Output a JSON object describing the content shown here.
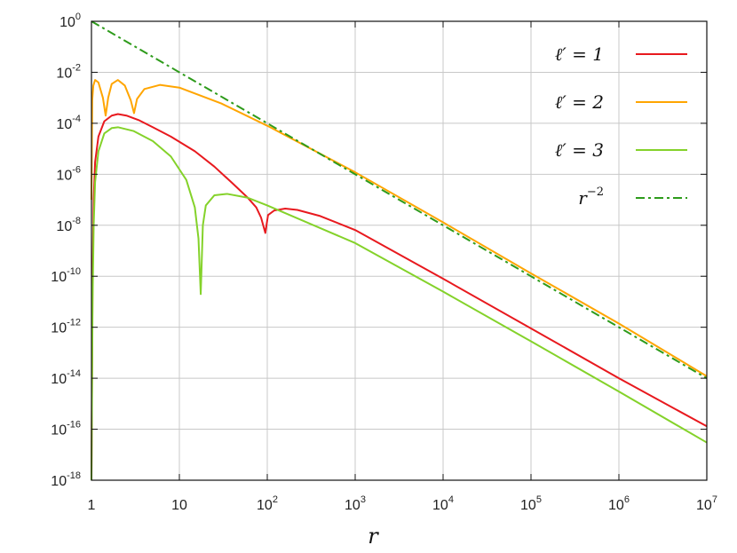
{
  "chart_data": {
    "type": "line",
    "xscale": "log",
    "yscale": "log",
    "xlim": [
      1,
      10000000
    ],
    "ylim": [
      1e-18,
      1
    ],
    "xlabel": "r",
    "ylabel": "",
    "grid": true,
    "legend_position": "top-right",
    "x_ticks": [
      {
        "value": 1,
        "base": "1",
        "exp": ""
      },
      {
        "value": 10,
        "base": "10",
        "exp": ""
      },
      {
        "value": 100,
        "base": "10",
        "exp": "2"
      },
      {
        "value": 1000,
        "base": "10",
        "exp": "3"
      },
      {
        "value": 10000,
        "base": "10",
        "exp": "4"
      },
      {
        "value": 100000,
        "base": "10",
        "exp": "5"
      },
      {
        "value": 1000000,
        "base": "10",
        "exp": "6"
      },
      {
        "value": 10000000,
        "base": "10",
        "exp": "7"
      }
    ],
    "y_ticks": [
      {
        "value": 1,
        "base": "10",
        "exp": "0"
      },
      {
        "value": 0.01,
        "base": "10",
        "exp": "-2"
      },
      {
        "value": 0.0001,
        "base": "10",
        "exp": "-4"
      },
      {
        "value": 1e-06,
        "base": "10",
        "exp": "-6"
      },
      {
        "value": 1e-08,
        "base": "10",
        "exp": "-8"
      },
      {
        "value": 1e-10,
        "base": "10",
        "exp": "-10"
      },
      {
        "value": 1e-12,
        "base": "10",
        "exp": "-12"
      },
      {
        "value": 1e-14,
        "base": "10",
        "exp": "-14"
      },
      {
        "value": 1e-16,
        "base": "10",
        "exp": "-16"
      },
      {
        "value": 1e-18,
        "base": "10",
        "exp": "-18"
      }
    ],
    "series": [
      {
        "name": "ℓ′ = 1",
        "name_base": "ℓ′ = 1",
        "name_exp": "",
        "color": "#e8191e",
        "dash": "",
        "points": [
          [
            1,
            1e-18
          ],
          [
            1.03,
            1e-10
          ],
          [
            1.06,
            1e-07
          ],
          [
            1.1,
            3e-06
          ],
          [
            1.2,
            3e-05
          ],
          [
            1.4,
            0.00012
          ],
          [
            1.7,
            0.0002
          ],
          [
            2.0,
            0.00023
          ],
          [
            2.5,
            0.0002
          ],
          [
            3.5,
            0.00013
          ],
          [
            5,
            7e-05
          ],
          [
            8,
            3e-05
          ],
          [
            15,
            8e-06
          ],
          [
            25,
            2e-06
          ],
          [
            40,
            4.5e-07
          ],
          [
            60,
            1.2e-07
          ],
          [
            75,
            5e-08
          ],
          [
            85,
            2e-08
          ],
          [
            95,
            5e-09
          ],
          [
            102,
            2.5e-08
          ],
          [
            120,
            3.8e-08
          ],
          [
            160,
            4.5e-08
          ],
          [
            220,
            4e-08
          ],
          [
            400,
            2.3e-08
          ],
          [
            1000,
            6.5e-09
          ],
          [
            10000,
            8e-11
          ],
          [
            100000,
            9e-13
          ],
          [
            1000000,
            1e-14
          ],
          [
            10000000,
            1.3e-16
          ]
        ]
      },
      {
        "name": "ℓ′ = 2",
        "name_base": "ℓ′ = 2",
        "name_exp": "",
        "color": "#ffa500",
        "dash": "",
        "points": [
          [
            1,
            1e-07
          ],
          [
            1.02,
            0.0008
          ],
          [
            1.05,
            0.003
          ],
          [
            1.1,
            0.005
          ],
          [
            1.2,
            0.004
          ],
          [
            1.35,
            0.001
          ],
          [
            1.45,
            0.0002
          ],
          [
            1.55,
            0.001
          ],
          [
            1.7,
            0.0035
          ],
          [
            2.0,
            0.005
          ],
          [
            2.4,
            0.003
          ],
          [
            2.8,
            0.0008
          ],
          [
            3.05,
            0.00025
          ],
          [
            3.3,
            0.0009
          ],
          [
            4,
            0.0022
          ],
          [
            6,
            0.0032
          ],
          [
            10,
            0.0025
          ],
          [
            30,
            0.0006
          ],
          [
            100,
            8e-05
          ],
          [
            1000,
            1.2e-06
          ],
          [
            10000,
            1.3e-08
          ],
          [
            100000,
            1.3e-10
          ],
          [
            1000000,
            1.4e-12
          ],
          [
            10000000,
            1.2e-14
          ]
        ]
      },
      {
        "name": "ℓ′ = 3",
        "name_base": "ℓ′ = 3",
        "name_exp": "",
        "color": "#84d22a",
        "dash": "",
        "points": [
          [
            1,
            1e-18
          ],
          [
            1.03,
            1e-11
          ],
          [
            1.06,
            1e-08
          ],
          [
            1.1,
            5e-07
          ],
          [
            1.2,
            8e-06
          ],
          [
            1.4,
            4e-05
          ],
          [
            1.7,
            6.5e-05
          ],
          [
            2.0,
            7e-05
          ],
          [
            3,
            5e-05
          ],
          [
            5,
            2e-05
          ],
          [
            8,
            5e-06
          ],
          [
            12,
            6e-07
          ],
          [
            15,
            5e-08
          ],
          [
            16.5,
            3e-09
          ],
          [
            17.5,
            2e-11
          ],
          [
            18.5,
            1e-08
          ],
          [
            20,
            6e-08
          ],
          [
            25,
            1.5e-07
          ],
          [
            35,
            1.7e-07
          ],
          [
            60,
            1.2e-07
          ],
          [
            100,
            6e-08
          ],
          [
            1000,
            2e-09
          ],
          [
            10000,
            2.5e-11
          ],
          [
            100000,
            2.8e-13
          ],
          [
            1000000,
            3e-15
          ],
          [
            10000000,
            3e-17
          ]
        ]
      },
      {
        "name": "r−2",
        "name_base": "r",
        "name_exp": "−2",
        "color": "#2e9b1b",
        "dash": "10 4 3 4",
        "points": [
          [
            1,
            1
          ],
          [
            10000000,
            1e-14
          ]
        ]
      }
    ]
  }
}
